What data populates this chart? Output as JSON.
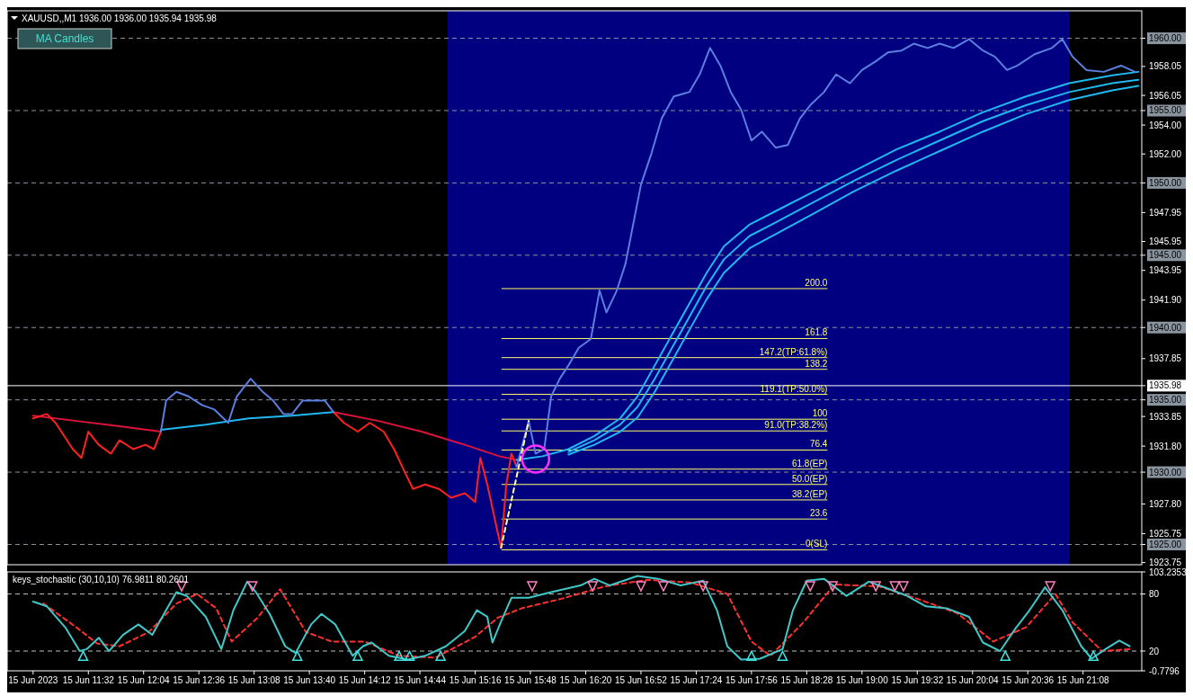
{
  "chart_data": [
    {
      "type": "line",
      "title": "XAUUSD,,M1 1936.00 1936.00 1935.94 1935.98",
      "xlim": [
        "2023-06-15T10:45",
        "2023-06-15T21:42"
      ],
      "ylim": [
        1923.6,
        1961.9
      ],
      "yticks": [
        {
          "value": 1960,
          "label": "1960.00"
        },
        1958.05,
        1956.05,
        {
          "value": 1955,
          "label": "1955.00"
        },
        {
          "value": 1954,
          "label": "1954.00"
        },
        {
          "value": 1952,
          "label": "1952.00"
        },
        {
          "value": 1950,
          "label": "1950.00"
        },
        1947.95,
        1945.95,
        {
          "value": 1945,
          "label": "1945.00"
        },
        1943.95,
        {
          "value": 1941.9,
          "label": "1941.90"
        },
        {
          "value": 1940,
          "label": "1940.00"
        },
        1937.85,
        1935.98,
        {
          "value": 1935,
          "label": "1935.00"
        },
        1933.85,
        {
          "value": 1931.8,
          "label": "1931.80"
        },
        {
          "value": 1930,
          "label": "1930.00"
        },
        {
          "value": 1927.8,
          "label": "1927.80"
        },
        1925.75,
        {
          "value": 1925,
          "label": "1925.00"
        },
        1923.75
      ],
      "tick_labels": "y",
      "annotations": [
        "MA Candles",
        {
          "text": "200.0",
          "x": "2023-06-15T18:40",
          "y": 1942.69
        },
        {
          "text": "161.8",
          "x": "2023-06-15T18:40",
          "y": 1939.24
        },
        {
          "text": "147.2(TP:61.8%)",
          "x": "2023-06-15T18:40",
          "y": 1937.92
        },
        {
          "text": "138.2",
          "x": "2023-06-15T18:40",
          "y": 1937.11
        },
        {
          "text": "119.1(TP:50.0%)",
          "x": "2023-06-15T18:40",
          "y": 1935.38
        },
        {
          "text": "100",
          "x": "2023-06-15T18:40",
          "y": 1933.66
        },
        {
          "text": "91.0(TP:38.2%)",
          "x": "2023-06-15T18:40",
          "y": 1932.85
        },
        {
          "text": "76.4",
          "x": "2023-06-15T18:40",
          "y": 1931.53
        },
        {
          "text": "61.8(EP)",
          "x": "2023-06-15T18:40",
          "y": 1930.21
        },
        {
          "text": "50.0(EP)",
          "x": "2023-06-15T18:40",
          "y": 1929.15
        },
        {
          "text": "38.2(EP)",
          "x": "2023-06-15T18:40",
          "y": 1928.08
        },
        {
          "text": "23.6",
          "x": "2023-06-15T18:40",
          "y": 1926.76
        },
        {
          "text": "0(SL)",
          "x": "2023-06-15T18:40",
          "y": 1924.63
        }
      ],
      "bands": [
        {
          "axis": "x",
          "from": "2023-06-15T15:00",
          "to": "2023-06-15T21:00",
          "color": "#000080"
        }
      ],
      "ref_lines": [
        {
          "axis": "y",
          "value": 1960,
          "color": "#8a949e",
          "line_style": "dashed"
        },
        {
          "axis": "y",
          "value": 1955,
          "color": "#8a949e",
          "line_style": "dashed"
        },
        {
          "axis": "y",
          "value": 1950,
          "color": "#8a949e",
          "line_style": "dashed"
        },
        {
          "axis": "y",
          "value": 1945,
          "color": "#8a949e",
          "line_style": "dashed"
        },
        {
          "axis": "y",
          "value": 1940,
          "color": "#8a949e",
          "line_style": "dashed"
        },
        {
          "axis": "y",
          "value": 1935,
          "color": "#8a949e",
          "line_style": "dashed"
        },
        {
          "axis": "y",
          "value": 1930,
          "color": "#8a949e",
          "line_style": "dashed"
        },
        {
          "axis": "y",
          "value": 1925,
          "color": "#8a949e",
          "line_style": "dashed"
        },
        {
          "axis": "y",
          "value": 1935.98,
          "color": "#ffffff",
          "line_style": "solid"
        },
        {
          "axis": "y",
          "value": 1942.69,
          "color": "#ffff66"
        },
        {
          "axis": "y",
          "value": 1939.24,
          "color": "#ffff66"
        },
        {
          "axis": "y",
          "value": 1937.92,
          "color": "#ffff66"
        },
        {
          "axis": "y",
          "value": 1937.11,
          "color": "#ffff66"
        },
        {
          "axis": "y",
          "value": 1935.38,
          "color": "#ffff66"
        },
        {
          "axis": "y",
          "value": 1933.66,
          "color": "#ffff66"
        },
        {
          "axis": "y",
          "value": 1932.85,
          "color": "#ffff66"
        },
        {
          "axis": "y",
          "value": 1931.53,
          "color": "#ffff66"
        },
        {
          "axis": "y",
          "value": 1930.21,
          "color": "#ffff66"
        },
        {
          "axis": "y",
          "value": 1929.15,
          "color": "#ffff66"
        },
        {
          "axis": "y",
          "value": 1928.08,
          "color": "#ffff66"
        },
        {
          "axis": "y",
          "value": 1926.76,
          "color": "#ffff66"
        },
        {
          "axis": "y",
          "value": 1924.63,
          "color": "#ffff66"
        }
      ],
      "series": [
        {
          "color": "#dc143c",
          "x": [
            "2023-06-15T11:00",
            "2023-06-15T11:25",
            "2023-06-15T11:50",
            "2023-06-15T12:14",
            "2023-06-15T13:00",
            "2023-06-15T13:54",
            "2023-06-15T14:20",
            "2023-06-15T14:45",
            "2023-06-15T15:10",
            "2023-06-15T15:30",
            "2023-06-15T15:40"
          ],
          "values": [
            1933.9,
            1933.54,
            1933.17,
            1932.8,
            null,
            1934.15,
            1933.54,
            1932.8,
            1931.89,
            1931.1,
            1930.85
          ]
        },
        {
          "color": "#1fb8f0",
          "x": [
            "2023-06-15T12:14",
            "2023-06-15T12:40",
            "2023-06-15T13:05",
            "2023-06-15T13:30",
            "2023-06-15T13:54",
            "2023-06-15T14:30",
            "2023-06-15T15:40",
            "2023-06-15T15:55",
            "2023-06-15T16:10",
            "2023-06-15T16:25",
            "2023-06-15T16:40",
            "2023-06-15T16:50",
            "2023-06-15T17:00",
            "2023-06-15T17:10",
            "2023-06-15T17:20",
            "2023-06-15T17:30",
            "2023-06-15T17:40",
            "2023-06-15T17:55",
            "2023-06-15T18:10",
            "2023-06-15T18:30",
            "2023-06-15T18:55",
            "2023-06-15T19:20",
            "2023-06-15T19:45",
            "2023-06-15T20:10",
            "2023-06-15T20:35",
            "2023-06-15T21:00",
            "2023-06-15T21:25",
            "2023-06-15T21:40"
          ],
          "values": [
            1932.93,
            1933.29,
            1933.72,
            1933.9,
            1934.15,
            null,
            1930.85,
            1931.1,
            1931.59,
            1932.5,
            1933.72,
            1935.24,
            1937.38,
            1939.51,
            1941.65,
            1943.78,
            1945.61,
            1947.13,
            1948.05,
            1949.27,
            1950.79,
            1952.32,
            1953.54,
            1954.88,
            1955.98,
            1956.89,
            1957.44,
            1957.68
          ]
        },
        {
          "color": "#1fb8f0",
          "x": [
            "2023-06-15T16:10",
            "2023-06-15T16:25",
            "2023-06-15T16:40",
            "2023-06-15T16:50",
            "2023-06-15T17:00",
            "2023-06-15T17:10",
            "2023-06-15T17:20",
            "2023-06-15T17:30",
            "2023-06-15T17:40",
            "2023-06-15T17:55",
            "2023-06-15T18:10",
            "2023-06-15T18:30",
            "2023-06-15T18:55",
            "2023-06-15T19:20",
            "2023-06-15T19:45",
            "2023-06-15T20:10",
            "2023-06-15T20:35",
            "2023-06-15T21:00",
            "2023-06-15T21:25",
            "2023-06-15T21:40"
          ],
          "values": [
            1931.4,
            1932.2,
            1933.29,
            1934.51,
            1936.46,
            1938.6,
            1940.73,
            1942.87,
            1944.7,
            1946.34,
            1947.26,
            1948.54,
            1950.12,
            1951.59,
            1952.93,
            1954.27,
            1955.37,
            1956.28,
            1956.89,
            1957.13
          ]
        },
        {
          "color": "#1fb8f0",
          "x": [
            "2023-06-15T16:10",
            "2023-06-15T16:25",
            "2023-06-15T16:40",
            "2023-06-15T16:50",
            "2023-06-15T17:00",
            "2023-06-15T17:10",
            "2023-06-15T17:20",
            "2023-06-15T17:30",
            "2023-06-15T17:40",
            "2023-06-15T17:55",
            "2023-06-15T18:10",
            "2023-06-15T18:30",
            "2023-06-15T18:55",
            "2023-06-15T19:20",
            "2023-06-15T19:45",
            "2023-06-15T20:10",
            "2023-06-15T20:35",
            "2023-06-15T21:00",
            "2023-06-15T21:25",
            "2023-06-15T21:40"
          ],
          "values": [
            1931.22,
            1931.89,
            1932.8,
            1933.78,
            1935.55,
            1937.68,
            1939.82,
            1941.95,
            1943.78,
            1945.49,
            1946.46,
            1947.74,
            1949.39,
            1950.85,
            1952.2,
            1953.54,
            1954.76,
            1955.73,
            1956.4,
            1956.71
          ]
        },
        {
          "color": "#ff2020",
          "x": [
            "2023-06-15T11:00",
            "2023-06-15T11:08",
            "2023-06-15T11:13",
            "2023-06-15T11:23",
            "2023-06-15T11:28",
            "2023-06-15T11:32",
            "2023-06-15T11:38",
            "2023-06-15T11:45",
            "2023-06-15T11:50",
            "2023-06-15T11:58",
            "2023-06-15T12:05",
            "2023-06-15T12:10",
            "2023-06-15T12:14",
            "2023-06-15T13:00",
            "2023-06-15T13:54",
            "2023-06-15T14:00",
            "2023-06-15T14:08",
            "2023-06-15T14:15",
            "2023-06-15T14:23",
            "2023-06-15T14:29",
            "2023-06-15T14:35",
            "2023-06-15T14:40",
            "2023-06-15T14:47",
            "2023-06-15T14:55",
            "2023-06-15T15:02",
            "2023-06-15T15:10",
            "2023-06-15T15:16",
            "2023-06-15T15:19",
            "2023-06-15T15:23",
            "2023-06-15T15:28",
            "2023-06-15T15:31",
            "2023-06-15T15:34",
            "2023-06-15T15:37",
            "2023-06-15T15:40"
          ],
          "values": [
            1933.72,
            1934.02,
            1933.41,
            1931.59,
            1930.98,
            1932.8,
            1931.89,
            1931.28,
            1932.2,
            1931.59,
            1931.89,
            1931.59,
            1932.8,
            null,
            1934.15,
            1933.41,
            1932.8,
            1933.41,
            1932.8,
            1931.59,
            1930.06,
            1928.84,
            1929.15,
            1928.84,
            1928.23,
            1928.54,
            1927.93,
            1930.98,
            1929.15,
            1926.4,
            1924.76,
            1929.15,
            1931.28,
            1930.37
          ]
        },
        {
          "color": "#5b7fe0",
          "x": [
            "2023-06-15T12:14",
            "2023-06-15T12:17",
            "2023-06-15T12:23",
            "2023-06-15T12:30",
            "2023-06-15T12:38",
            "2023-06-15T12:45",
            "2023-06-15T12:53",
            "2023-06-15T12:58",
            "2023-06-15T13:02",
            "2023-06-15T13:06",
            "2023-06-15T13:13",
            "2023-06-15T13:19",
            "2023-06-15T13:25",
            "2023-06-15T13:30",
            "2023-06-15T13:36",
            "2023-06-15T13:43",
            "2023-06-15T13:49",
            "2023-06-15T13:54",
            "2023-06-15T14:30",
            "2023-06-15T15:40",
            "2023-06-15T15:44",
            "2023-06-15T15:47",
            "2023-06-15T15:51",
            "2023-06-15T15:56",
            "2023-06-15T16:00",
            "2023-06-15T16:05",
            "2023-06-15T16:10",
            "2023-06-15T16:16",
            "2023-06-15T16:23",
            "2023-06-15T16:28",
            "2023-06-15T16:32",
            "2023-06-15T16:38",
            "2023-06-15T16:43",
            "2023-06-15T16:47",
            "2023-06-15T16:52",
            "2023-06-15T16:58",
            "2023-06-15T17:04",
            "2023-06-15T17:11",
            "2023-06-15T17:20",
            "2023-06-15T17:26",
            "2023-06-15T17:32",
            "2023-06-15T17:38",
            "2023-06-15T17:44",
            "2023-06-15T17:50",
            "2023-06-15T17:56",
            "2023-06-15T18:02",
            "2023-06-15T18:10",
            "2023-06-15T18:17",
            "2023-06-15T18:24",
            "2023-06-15T18:30",
            "2023-06-15T18:38",
            "2023-06-15T18:45",
            "2023-06-15T18:53",
            "2023-06-15T19:00",
            "2023-06-15T19:08",
            "2023-06-15T19:15",
            "2023-06-15T19:23",
            "2023-06-15T19:30",
            "2023-06-15T19:38",
            "2023-06-15T19:45",
            "2023-06-15T19:53",
            "2023-06-15T20:02",
            "2023-06-15T20:10",
            "2023-06-15T20:17",
            "2023-06-15T20:24",
            "2023-06-15T20:30",
            "2023-06-15T20:40",
            "2023-06-15T20:50",
            "2023-06-15T20:56",
            "2023-06-15T21:02",
            "2023-06-15T21:10",
            "2023-06-15T21:20",
            "2023-06-15T21:30",
            "2023-06-15T21:38"
          ],
          "values": [
            1932.8,
            1934.94,
            1935.55,
            1935.24,
            1934.63,
            1934.33,
            1933.41,
            1935.24,
            1935.85,
            1936.46,
            1935.55,
            1934.94,
            1934.02,
            1934.02,
            1934.94,
            1934.94,
            1934.94,
            1934.15,
            null,
            1930.37,
            1932.2,
            1933.54,
            1931.28,
            1931.59,
            1935.24,
            1936.46,
            1937.38,
            1938.6,
            1939.21,
            1942.56,
            1941.04,
            1942.56,
            1944.39,
            1946.83,
            1949.88,
            1952.01,
            1954.45,
            1955.98,
            1956.28,
            1957.5,
            1959.33,
            1958.11,
            1956.28,
            1955.06,
            1952.93,
            1953.54,
            1952.44,
            1952.62,
            1954.45,
            1955.37,
            1956.28,
            1957.5,
            1956.89,
            1957.8,
            1958.41,
            1959.02,
            1959.15,
            1959.63,
            1959.33,
            1959.63,
            1959.33,
            1959.94,
            1959.15,
            1958.72,
            1957.8,
            1958.11,
            1958.9,
            1959.33,
            1959.94,
            1958.72,
            1957.8,
            1957.68,
            1958.11,
            1957.68
          ]
        },
        {
          "color": "#ffffaa",
          "line_style": "dashed",
          "x": [
            "2023-06-15T15:31",
            "2023-06-15T15:47"
          ],
          "values": [
            1924.76,
            1933.54
          ]
        }
      ]
    },
    {
      "type": "line",
      "title": "keys_stochastic (30,10,10) 76.9811 80.2601",
      "xlim": [
        "2023-06-15T10:45",
        "2023-06-15T21:42"
      ],
      "ylim": [
        -0.7796,
        103.2353
      ],
      "xticks": [
        {
          "value": "2023-06-15T11:00",
          "label": "15 Jun 2023"
        },
        {
          "value": "2023-06-15T11:32",
          "label": "15 Jun 11:32"
        },
        {
          "value": "2023-06-15T12:04",
          "label": "15 Jun 12:04"
        },
        {
          "value": "2023-06-15T12:36",
          "label": "15 Jun 12:36"
        },
        {
          "value": "2023-06-15T13:08",
          "label": "15 Jun 13:08"
        },
        {
          "value": "2023-06-15T13:40",
          "label": "15 Jun 13:40"
        },
        {
          "value": "2023-06-15T14:12",
          "label": "15 Jun 14:12"
        },
        {
          "value": "2023-06-15T14:44",
          "label": "15 Jun 14:44"
        },
        {
          "value": "2023-06-15T15:16",
          "label": "15 Jun 15:16"
        },
        {
          "value": "2023-06-15T15:48",
          "label": "15 Jun 15:48"
        },
        {
          "value": "2023-06-15T16:20",
          "label": "15 Jun 16:20"
        },
        {
          "value": "2023-06-15T16:52",
          "label": "15 Jun 16:52"
        },
        {
          "value": "2023-06-15T17:24",
          "label": "15 Jun 17:24"
        },
        {
          "value": "2023-06-15T17:56",
          "label": "15 Jun 17:56"
        },
        {
          "value": "2023-06-15T18:28",
          "label": "15 Jun 18:28"
        },
        {
          "value": "2023-06-15T19:00",
          "label": "15 Jun 19:00"
        },
        {
          "value": "2023-06-15T19:32",
          "label": "15 Jun 19:32"
        },
        {
          "value": "2023-06-15T20:04",
          "label": "15 Jun 20:04"
        },
        {
          "value": "2023-06-15T20:36",
          "label": "15 Jun 20:36"
        },
        {
          "value": "2023-06-15T21:08",
          "label": "15 Jun 21:08"
        }
      ],
      "yticks": [
        103.2353,
        80,
        20,
        -0.7796
      ],
      "ref_lines": [
        {
          "axis": "y",
          "value": 80,
          "line_style": "dashed"
        },
        {
          "axis": "y",
          "value": 20,
          "line_style": "dashed"
        }
      ],
      "series": [
        {
          "color": "#ff3030",
          "line_style": "dashed",
          "x": [
            "2023-06-15T11:06",
            "2023-06-15T11:25",
            "2023-06-15T11:37",
            "2023-06-15T11:50",
            "2023-06-15T12:07",
            "2023-06-15T12:23",
            "2023-06-15T12:35",
            "2023-06-15T12:46",
            "2023-06-15T12:55",
            "2023-06-15T13:10",
            "2023-06-15T13:23",
            "2023-06-15T13:38",
            "2023-06-15T13:53",
            "2023-06-15T14:12",
            "2023-06-15T14:32",
            "2023-06-15T14:53",
            "2023-06-15T15:16",
            "2023-06-15T15:29",
            "2023-06-15T15:43",
            "2023-06-15T16:06",
            "2023-06-15T16:31",
            "2023-06-15T16:56",
            "2023-06-15T17:21",
            "2023-06-15T17:42",
            "2023-06-15T17:56",
            "2023-06-15T18:07",
            "2023-06-15T18:26",
            "2023-06-15T18:44",
            "2023-06-15T19:10",
            "2023-06-15T19:32",
            "2023-06-15T19:55",
            "2023-06-15T20:16",
            "2023-06-15T20:35",
            "2023-06-15T20:52",
            "2023-06-15T21:02",
            "2023-06-15T21:19",
            "2023-06-15T21:35"
          ],
          "values": [
            70,
            45,
            28,
            25,
            40,
            70,
            80,
            65,
            30,
            55,
            85,
            40,
            30,
            30,
            15,
            13,
            35,
            55,
            65,
            75,
            88,
            95,
            92,
            80,
            30,
            15,
            50,
            90,
            88,
            75,
            60,
            30,
            45,
            80,
            50,
            20,
            22
          ]
        },
        {
          "color": "#40c8c8",
          "x": [
            "2023-06-15T11:00",
            "2023-06-15T11:08",
            "2023-06-15T11:19",
            "2023-06-15T11:27",
            "2023-06-15T11:31",
            "2023-06-15T11:38",
            "2023-06-15T11:44",
            "2023-06-15T11:52",
            "2023-06-15T12:01",
            "2023-06-15T12:09",
            "2023-06-15T12:17",
            "2023-06-15T12:23",
            "2023-06-15T12:29",
            "2023-06-15T12:40",
            "2023-06-15T12:49",
            "2023-06-15T12:56",
            "2023-06-15T13:04",
            "2023-06-15T13:09",
            "2023-06-15T13:17",
            "2023-06-15T13:26",
            "2023-06-15T13:32",
            "2023-06-15T13:41",
            "2023-06-15T13:47",
            "2023-06-15T13:55",
            "2023-06-15T14:05",
            "2023-06-15T14:11",
            "2023-06-15T14:16",
            "2023-06-15T14:26",
            "2023-06-15T14:37",
            "2023-06-15T14:47",
            "2023-06-15T14:59",
            "2023-06-15T15:10",
            "2023-06-15T15:17",
            "2023-06-15T15:23",
            "2023-06-15T15:26",
            "2023-06-15T15:31",
            "2023-06-15T15:37",
            "2023-06-15T15:47",
            "2023-06-15T16:00",
            "2023-06-15T16:17",
            "2023-06-15T16:25",
            "2023-06-15T16:34",
            "2023-06-15T16:50",
            "2023-06-15T17:02",
            "2023-06-15T17:15",
            "2023-06-15T17:28",
            "2023-06-15T17:36",
            "2023-06-15T17:42",
            "2023-06-15T17:50",
            "2023-06-15T18:01",
            "2023-06-15T18:14",
            "2023-06-15T18:20",
            "2023-06-15T18:28",
            "2023-06-15T18:38",
            "2023-06-15T18:51",
            "2023-06-15T19:04",
            "2023-06-15T19:16",
            "2023-06-15T19:26",
            "2023-06-15T19:37",
            "2023-06-15T19:49",
            "2023-06-15T20:02",
            "2023-06-15T20:10",
            "2023-06-15T20:20",
            "2023-06-15T20:29",
            "2023-06-15T20:37",
            "2023-06-15T20:46",
            "2023-06-15T20:56",
            "2023-06-15T21:07",
            "2023-06-15T21:13",
            "2023-06-15T21:21",
            "2023-06-15T21:29",
            "2023-06-15T21:35"
          ],
          "values": [
            72,
            67,
            44,
            20,
            22,
            34,
            20,
            37,
            48,
            37,
            63,
            82,
            78,
            56,
            22,
            63,
            93,
            82,
            59,
            25,
            18,
            48,
            59,
            48,
            15,
            25,
            29,
            15,
            11,
            15,
            25,
            41,
            63,
            56,
            29,
            51,
            76,
            76,
            82,
            89,
            96,
            89,
            99,
            96,
            89,
            94,
            63,
            25,
            11,
            12,
            22,
            63,
            94,
            96,
            78,
            93,
            85,
            78,
            67,
            65,
            56,
            29,
            20,
            44,
            63,
            87,
            63,
            25,
            12,
            22,
            31,
            25
          ]
        },
        {
          "type": "scatter",
          "color": "#40e0e0",
          "marker": "triangle",
          "x": [
            "2023-06-15T11:29",
            "2023-06-15T13:33",
            "2023-06-15T14:08",
            "2023-06-15T14:32",
            "2023-06-15T14:38",
            "2023-06-15T14:56",
            "2023-06-15T17:56",
            "2023-06-15T18:14",
            "2023-06-15T20:23",
            "2023-06-15T21:14"
          ],
          "values": [
            15,
            15,
            15,
            15,
            15,
            15,
            15,
            15,
            15,
            15
          ]
        },
        {
          "type": "scatter",
          "color": "#ff80c0",
          "marker": "triangle",
          "x": [
            "2023-06-15T12:26",
            "2023-06-15T13:07",
            "2023-06-15T15:49",
            "2023-06-15T16:24",
            "2023-06-15T16:52",
            "2023-06-15T17:05",
            "2023-06-15T17:28",
            "2023-06-15T18:30",
            "2023-06-15T18:43",
            "2023-06-15T19:08",
            "2023-06-15T19:19",
            "2023-06-15T19:24",
            "2023-06-15T20:49"
          ],
          "values": [
            88,
            88,
            88,
            88,
            88,
            88,
            88,
            88,
            88,
            88,
            88,
            88,
            88
          ]
        }
      ]
    }
  ]
}
